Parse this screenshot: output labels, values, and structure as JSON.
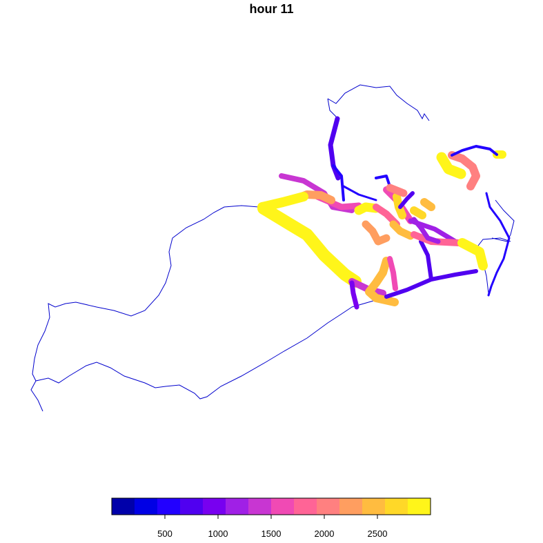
{
  "title": "hour 11",
  "colors": {
    "outline": "#0000CD",
    "palette": [
      "#0000AA",
      "#0000E5",
      "#2200FF",
      "#5000F0",
      "#7800F0",
      "#A020E6",
      "#C836D2",
      "#F04AB4",
      "#FF6496",
      "#FF8080",
      "#FF9E60",
      "#FFBC40",
      "#FFD828",
      "#FFF51A"
    ]
  },
  "legend": {
    "type": "color-bar",
    "ticks": [
      "500",
      "1000",
      "1500",
      "2000",
      "2500"
    ],
    "tick_values": [
      500,
      1000,
      1500,
      2000,
      2500
    ],
    "range": [
      0,
      3000
    ]
  },
  "roads": [
    {
      "value": 800,
      "width": 7,
      "points": [
        [
          489,
          172
        ],
        [
          479,
          210
        ],
        [
          483,
          240
        ],
        [
          490,
          258
        ]
      ]
    },
    {
      "value": 500,
      "width": 4,
      "points": [
        [
          483,
          240
        ],
        [
          495,
          255
        ],
        [
          498,
          290
        ]
      ]
    },
    {
      "value": 500,
      "width": 3,
      "points": [
        [
          498,
          270
        ],
        [
          520,
          282
        ],
        [
          545,
          290
        ]
      ]
    },
    {
      "value": 500,
      "width": 4,
      "points": [
        [
          545,
          258
        ],
        [
          560,
          255
        ],
        [
          565,
          270
        ]
      ]
    },
    {
      "value": 1300,
      "width": 8,
      "points": [
        [
          408,
          255
        ],
        [
          440,
          262
        ],
        [
          470,
          280
        ],
        [
          482,
          300
        ],
        [
          510,
          305
        ]
      ]
    },
    {
      "value": 1500,
      "width": 9,
      "points": [
        [
          460,
          285
        ],
        [
          495,
          300
        ],
        [
          520,
          298
        ]
      ]
    },
    {
      "value": 2200,
      "width": 12,
      "points": [
        [
          430,
          288
        ],
        [
          445,
          282
        ],
        [
          465,
          283
        ],
        [
          480,
          290
        ]
      ]
    },
    {
      "value": 2800,
      "width": 14,
      "points": [
        [
          380,
          300
        ],
        [
          410,
          293
        ],
        [
          440,
          285
        ]
      ]
    },
    {
      "value": 2900,
      "width": 18,
      "points": [
        [
          382,
          302
        ],
        [
          420,
          325
        ],
        [
          445,
          340
        ],
        [
          470,
          370
        ],
        [
          500,
          398
        ],
        [
          515,
          408
        ]
      ]
    },
    {
      "value": 1400,
      "width": 10,
      "points": [
        [
          510,
          408
        ],
        [
          535,
          420
        ],
        [
          555,
          425
        ]
      ]
    },
    {
      "value": 1000,
      "width": 7,
      "points": [
        [
          510,
          410
        ],
        [
          512,
          425
        ],
        [
          517,
          445
        ]
      ]
    },
    {
      "value": 2400,
      "width": 12,
      "points": [
        [
          560,
          378
        ],
        [
          555,
          395
        ],
        [
          545,
          410
        ],
        [
          535,
          423
        ],
        [
          545,
          432
        ],
        [
          572,
          438
        ]
      ]
    },
    {
      "value": 1500,
      "width": 8,
      "points": [
        [
          565,
          375
        ],
        [
          570,
          395
        ],
        [
          573,
          418
        ]
      ]
    },
    {
      "value": 700,
      "width": 6,
      "points": [
        [
          560,
          430
        ],
        [
          590,
          420
        ],
        [
          625,
          405
        ],
        [
          660,
          398
        ],
        [
          690,
          393
        ]
      ]
    },
    {
      "value": 800,
      "width": 6,
      "points": [
        [
          610,
          350
        ],
        [
          620,
          370
        ],
        [
          625,
          405
        ]
      ]
    },
    {
      "value": 2800,
      "width": 13,
      "points": [
        [
          520,
          305
        ],
        [
          530,
          300
        ],
        [
          545,
          302
        ]
      ]
    },
    {
      "value": 2200,
      "width": 11,
      "points": [
        [
          530,
          325
        ],
        [
          540,
          335
        ],
        [
          548,
          350
        ],
        [
          560,
          345
        ]
      ]
    },
    {
      "value": 1800,
      "width": 10,
      "points": [
        [
          545,
          300
        ],
        [
          560,
          310
        ],
        [
          575,
          325
        ]
      ]
    },
    {
      "value": 1700,
      "width": 10,
      "points": [
        [
          560,
          275
        ],
        [
          575,
          290
        ],
        [
          585,
          305
        ],
        [
          595,
          320
        ]
      ]
    },
    {
      "value": 2600,
      "width": 12,
      "points": [
        [
          575,
          285
        ],
        [
          578,
          300
        ],
        [
          583,
          312
        ]
      ]
    },
    {
      "value": 2100,
      "width": 11,
      "points": [
        [
          565,
          272
        ],
        [
          585,
          280
        ]
      ]
    },
    {
      "value": 2400,
      "width": 11,
      "points": [
        [
          570,
          325
        ],
        [
          580,
          335
        ],
        [
          595,
          342
        ]
      ]
    },
    {
      "value": 2700,
      "width": 12,
      "points": [
        [
          600,
          305
        ],
        [
          612,
          312
        ]
      ]
    },
    {
      "value": 2500,
      "width": 12,
      "points": [
        [
          615,
          293
        ],
        [
          625,
          300
        ]
      ]
    },
    {
      "value": 1100,
      "width": 7,
      "points": [
        [
          595,
          320
        ],
        [
          630,
          332
        ],
        [
          660,
          350
        ]
      ]
    },
    {
      "value": 1900,
      "width": 10,
      "points": [
        [
          600,
          340
        ],
        [
          625,
          350
        ],
        [
          665,
          352
        ]
      ]
    },
    {
      "value": 2900,
      "width": 14,
      "points": [
        [
          670,
          352
        ],
        [
          695,
          365
        ],
        [
          700,
          385
        ]
      ]
    },
    {
      "value": 2000,
      "width": 12,
      "points": [
        [
          655,
          225
        ],
        [
          670,
          230
        ],
        [
          685,
          242
        ],
        [
          690,
          255
        ],
        [
          682,
          270
        ]
      ]
    },
    {
      "value": 2800,
      "width": 15,
      "points": [
        [
          640,
          228
        ],
        [
          650,
          245
        ],
        [
          668,
          252
        ]
      ]
    },
    {
      "value": 2900,
      "width": 12,
      "points": [
        [
          720,
          224
        ],
        [
          728,
          224
        ]
      ]
    },
    {
      "value": 600,
      "width": 4,
      "points": [
        [
          655,
          225
        ],
        [
          670,
          218
        ],
        [
          690,
          212
        ],
        [
          710,
          216
        ],
        [
          720,
          224
        ]
      ]
    },
    {
      "value": 500,
      "width": 3,
      "points": [
        [
          705,
          280
        ],
        [
          710,
          300
        ],
        [
          725,
          320
        ],
        [
          738,
          345
        ],
        [
          730,
          375
        ],
        [
          720,
          395
        ],
        [
          712,
          415
        ],
        [
          708,
          428
        ]
      ]
    },
    {
      "value": 700,
      "width": 6,
      "points": [
        [
          580,
          300
        ],
        [
          590,
          288
        ],
        [
          598,
          280
        ]
      ]
    },
    {
      "value": 1100,
      "width": 7,
      "points": [
        [
          600,
          318
        ],
        [
          610,
          330
        ],
        [
          620,
          345
        ],
        [
          635,
          350
        ]
      ]
    }
  ],
  "outline": [
    [
      475,
      143
    ],
    [
      487,
      150
    ],
    [
      500,
      135
    ],
    [
      522,
      123
    ],
    [
      545,
      127
    ],
    [
      565,
      125
    ],
    [
      575,
      138
    ],
    [
      590,
      150
    ],
    [
      605,
      160
    ],
    [
      612,
      172
    ],
    [
      610,
      160
    ],
    [
      622,
      175
    ],
    [
      627,
      197
    ]
  ]
}
